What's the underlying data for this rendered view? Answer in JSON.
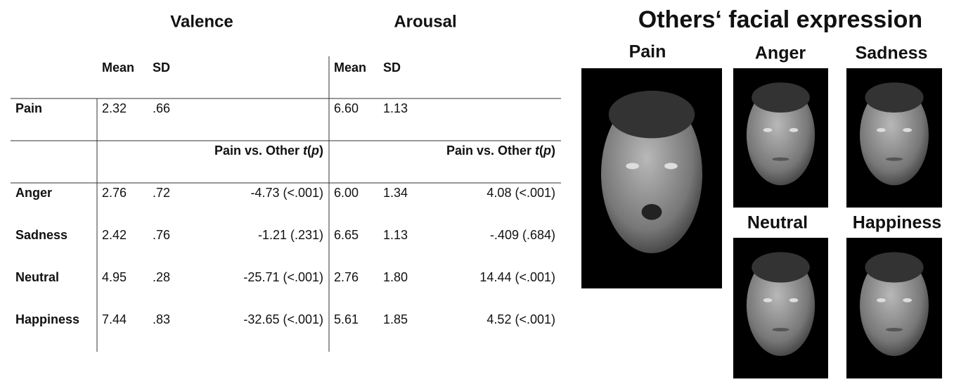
{
  "table": {
    "groups": [
      "Valence",
      "Arousal"
    ],
    "subheaders": [
      "Mean",
      "SD",
      "Mean",
      "SD"
    ],
    "reference_row": [
      "Pain",
      "2.32",
      ".66",
      "6.60",
      "1.13"
    ],
    "comparison_headers": [
      [
        "Pain vs. Other ",
        "t",
        "(",
        "p",
        ")"
      ],
      [
        "Pain vs. Other ",
        "t",
        "(",
        "p",
        ")"
      ]
    ],
    "rows": [
      [
        "Anger",
        "2.76",
        ".72",
        "-4.73 (<.001)",
        "6.00",
        "1.34",
        "4.08 (<.001)"
      ],
      [
        "Sadness",
        "2.42",
        ".76",
        "-1.21 (.231)",
        "6.65",
        "1.13",
        "-.409 (.684)"
      ],
      [
        "Neutral",
        "4.95",
        ".28",
        "-25.71 (<.001)",
        "2.76",
        "1.80",
        "14.44 (<.001)"
      ],
      [
        "Happiness",
        "7.44",
        ".83",
        "-32.65 (<.001)",
        "5.61",
        "1.85",
        "4.52 (<.001)"
      ]
    ]
  },
  "figure": {
    "title": "Others‘ facial expression",
    "faces": [
      "Pain",
      "Anger",
      "Sadness",
      "Neutral",
      "Happiness"
    ]
  }
}
